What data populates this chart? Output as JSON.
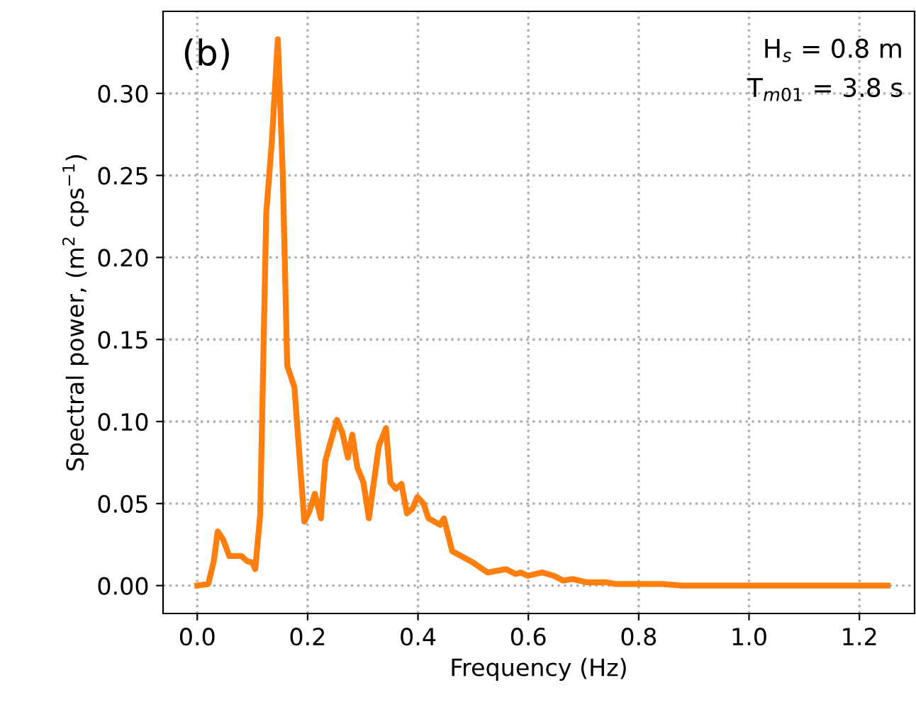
{
  "chart_data": {
    "type": "line",
    "xlabel": "Frequency (Hz)",
    "ylabel": "Spectral power, (m$^{2}$ cps$^{−1}$)",
    "annotations": [
      "(b)",
      "H$_{s}$ = 0.8 m",
      "T$_{m01}$ = 3.8 s"
    ],
    "series": [
      {
        "color": "#ff7f0e",
        "x": [
          0.0,
          0.02,
          0.03,
          0.037,
          0.047,
          0.058,
          0.08,
          0.09,
          0.1,
          0.105,
          0.114,
          0.125,
          0.135,
          0.146,
          0.155,
          0.163,
          0.176,
          0.185,
          0.194,
          0.203,
          0.213,
          0.224,
          0.232,
          0.253,
          0.263,
          0.273,
          0.281,
          0.29,
          0.301,
          0.311,
          0.329,
          0.342,
          0.35,
          0.36,
          0.37,
          0.38,
          0.39,
          0.399,
          0.41,
          0.419,
          0.44,
          0.447,
          0.462,
          0.5,
          0.526,
          0.56,
          0.577,
          0.586,
          0.599,
          0.625,
          0.646,
          0.663,
          0.68,
          0.706,
          0.741,
          0.758,
          0.801,
          0.843,
          0.878,
          1.015,
          1.251
        ],
        "values": [
          0.0,
          0.001,
          0.015,
          0.033,
          0.028,
          0.018,
          0.018,
          0.015,
          0.014,
          0.01,
          0.043,
          0.227,
          0.27,
          0.333,
          0.25,
          0.134,
          0.121,
          0.08,
          0.039,
          0.045,
          0.056,
          0.041,
          0.076,
          0.101,
          0.093,
          0.078,
          0.092,
          0.072,
          0.063,
          0.041,
          0.085,
          0.096,
          0.063,
          0.059,
          0.062,
          0.044,
          0.047,
          0.054,
          0.05,
          0.041,
          0.037,
          0.041,
          0.021,
          0.014,
          0.008,
          0.01,
          0.007,
          0.008,
          0.006,
          0.008,
          0.006,
          0.003,
          0.004,
          0.002,
          0.002,
          0.001,
          0.001,
          0.001,
          0.0,
          0.0,
          0.0
        ]
      }
    ],
    "xlim": [
      -0.062,
      1.3
    ],
    "ylim": [
      -0.017,
      0.35
    ],
    "xticks": [
      {
        "value": 0.0,
        "label": "0.0"
      },
      0.2,
      0.4,
      0.6,
      0.8,
      {
        "value": 1.0,
        "label": "1.0"
      },
      1.2
    ],
    "yticks": [
      {
        "value": 0.0,
        "label": "0.00"
      },
      0.05,
      {
        "value": 0.1,
        "label": "0.10"
      },
      0.15,
      {
        "value": 0.2,
        "label": "0.20"
      },
      0.25,
      {
        "value": 0.3,
        "label": "0.30"
      }
    ],
    "grid": true,
    "line_style": "solid",
    "marker": "none"
  }
}
